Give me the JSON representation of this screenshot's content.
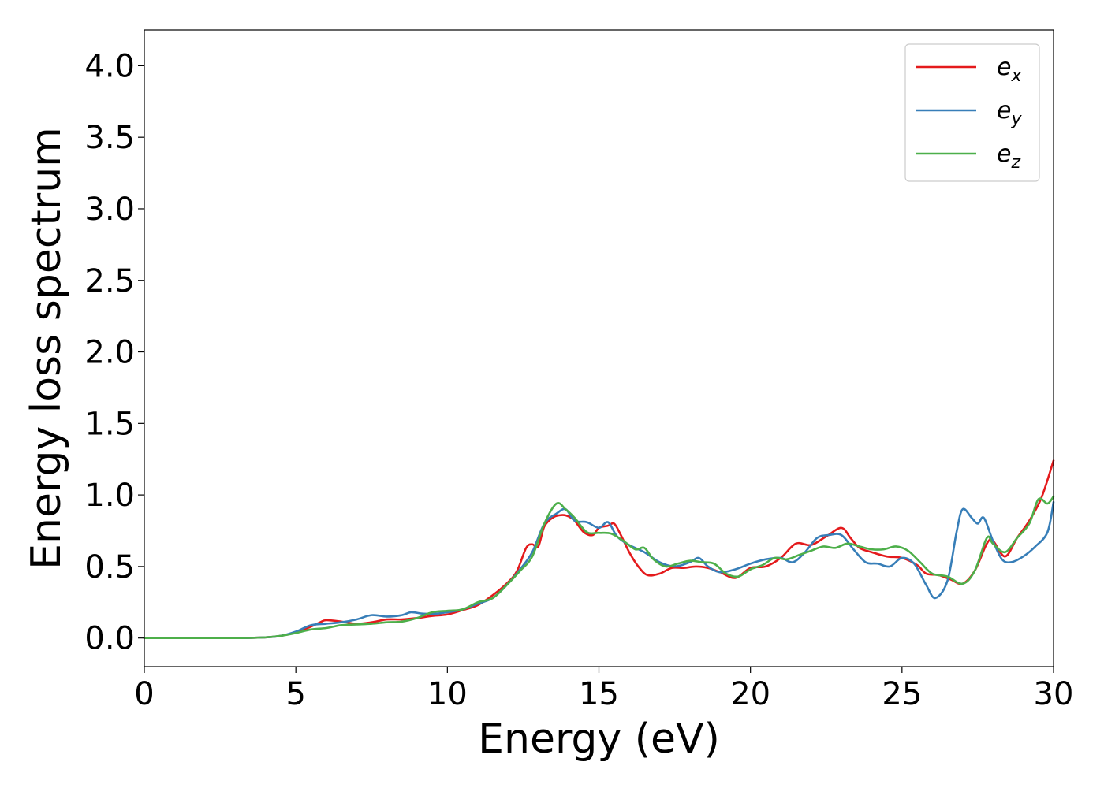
{
  "chart_data": {
    "type": "line",
    "title": "",
    "xlabel": "Energy (eV)",
    "ylabel": "Energy loss spectrum",
    "xlim": [
      0,
      30
    ],
    "ylim": [
      -0.2,
      4.25
    ],
    "xticks": [
      0,
      5,
      10,
      15,
      20,
      25,
      30
    ],
    "xtick_labels": [
      "0",
      "5",
      "10",
      "15",
      "20",
      "25",
      "30"
    ],
    "yticks": [
      0.0,
      0.5,
      1.0,
      1.5,
      2.0,
      2.5,
      3.0,
      3.5,
      4.0
    ],
    "ytick_labels": [
      "0.0",
      "0.5",
      "1.0",
      "1.5",
      "2.0",
      "2.5",
      "3.0",
      "3.5",
      "4.0"
    ],
    "grid": false,
    "legend_position": "top-right",
    "series": [
      {
        "name": "e_x",
        "label_base": "e",
        "label_sub": "x",
        "color": "#e41a1c",
        "points": [
          [
            0,
            0
          ],
          [
            3,
            0
          ],
          [
            4,
            0.005
          ],
          [
            4.5,
            0.015
          ],
          [
            5,
            0.04
          ],
          [
            5.5,
            0.08
          ],
          [
            5.8,
            0.11
          ],
          [
            6,
            0.125
          ],
          [
            6.5,
            0.115
          ],
          [
            7,
            0.1
          ],
          [
            7.5,
            0.11
          ],
          [
            8,
            0.13
          ],
          [
            8.5,
            0.13
          ],
          [
            9,
            0.14
          ],
          [
            9.5,
            0.155
          ],
          [
            10,
            0.165
          ],
          [
            10.5,
            0.195
          ],
          [
            11,
            0.23
          ],
          [
            11.5,
            0.3
          ],
          [
            12,
            0.39
          ],
          [
            12.3,
            0.47
          ],
          [
            12.6,
            0.63
          ],
          [
            12.8,
            0.655
          ],
          [
            13,
            0.64
          ],
          [
            13.2,
            0.78
          ],
          [
            13.5,
            0.845
          ],
          [
            13.8,
            0.86
          ],
          [
            14,
            0.85
          ],
          [
            14.2,
            0.82
          ],
          [
            14.5,
            0.74
          ],
          [
            14.8,
            0.72
          ],
          [
            15,
            0.77
          ],
          [
            15.3,
            0.785
          ],
          [
            15.5,
            0.8
          ],
          [
            15.7,
            0.73
          ],
          [
            16,
            0.6
          ],
          [
            16.3,
            0.5
          ],
          [
            16.6,
            0.44
          ],
          [
            17,
            0.45
          ],
          [
            17.4,
            0.49
          ],
          [
            17.8,
            0.49
          ],
          [
            18.2,
            0.5
          ],
          [
            18.6,
            0.49
          ],
          [
            19,
            0.46
          ],
          [
            19.5,
            0.42
          ],
          [
            20,
            0.49
          ],
          [
            20.5,
            0.5
          ],
          [
            21,
            0.56
          ],
          [
            21.5,
            0.66
          ],
          [
            22,
            0.65
          ],
          [
            22.5,
            0.71
          ],
          [
            23,
            0.77
          ],
          [
            23.3,
            0.7
          ],
          [
            23.6,
            0.63
          ],
          [
            24,
            0.6
          ],
          [
            24.5,
            0.57
          ],
          [
            25,
            0.56
          ],
          [
            25.5,
            0.51
          ],
          [
            25.8,
            0.45
          ],
          [
            26.2,
            0.44
          ],
          [
            26.6,
            0.41
          ],
          [
            27,
            0.38
          ],
          [
            27.4,
            0.47
          ],
          [
            27.8,
            0.66
          ],
          [
            28,
            0.68
          ],
          [
            28.4,
            0.57
          ],
          [
            28.8,
            0.7
          ],
          [
            29.2,
            0.82
          ],
          [
            29.6,
            0.98
          ],
          [
            30,
            1.24
          ]
        ]
      },
      {
        "name": "e_y",
        "label_base": "e",
        "label_sub": "y",
        "color": "#377eb8",
        "points": [
          [
            0,
            0
          ],
          [
            3,
            0
          ],
          [
            4,
            0.005
          ],
          [
            4.5,
            0.015
          ],
          [
            5,
            0.045
          ],
          [
            5.5,
            0.09
          ],
          [
            6,
            0.1
          ],
          [
            6.5,
            0.11
          ],
          [
            7,
            0.13
          ],
          [
            7.5,
            0.16
          ],
          [
            8,
            0.15
          ],
          [
            8.5,
            0.16
          ],
          [
            8.8,
            0.18
          ],
          [
            9.2,
            0.17
          ],
          [
            9.6,
            0.17
          ],
          [
            10,
            0.18
          ],
          [
            10.5,
            0.2
          ],
          [
            11,
            0.24
          ],
          [
            11.5,
            0.28
          ],
          [
            12,
            0.38
          ],
          [
            12.4,
            0.48
          ],
          [
            12.8,
            0.6
          ],
          [
            13.2,
            0.8
          ],
          [
            13.6,
            0.87
          ],
          [
            13.9,
            0.9
          ],
          [
            14.2,
            0.82
          ],
          [
            14.6,
            0.81
          ],
          [
            15,
            0.77
          ],
          [
            15.3,
            0.81
          ],
          [
            15.6,
            0.71
          ],
          [
            16,
            0.65
          ],
          [
            16.5,
            0.6
          ],
          [
            17,
            0.53
          ],
          [
            17.5,
            0.5
          ],
          [
            18,
            0.53
          ],
          [
            18.3,
            0.56
          ],
          [
            18.6,
            0.5
          ],
          [
            19,
            0.46
          ],
          [
            19.5,
            0.48
          ],
          [
            20,
            0.52
          ],
          [
            20.5,
            0.55
          ],
          [
            21,
            0.56
          ],
          [
            21.4,
            0.53
          ],
          [
            21.8,
            0.6
          ],
          [
            22.2,
            0.7
          ],
          [
            22.6,
            0.72
          ],
          [
            23,
            0.72
          ],
          [
            23.4,
            0.62
          ],
          [
            23.8,
            0.53
          ],
          [
            24.2,
            0.52
          ],
          [
            24.6,
            0.5
          ],
          [
            25,
            0.56
          ],
          [
            25.4,
            0.52
          ],
          [
            25.8,
            0.37
          ],
          [
            26.1,
            0.28
          ],
          [
            26.5,
            0.4
          ],
          [
            26.8,
            0.74
          ],
          [
            27,
            0.9
          ],
          [
            27.3,
            0.84
          ],
          [
            27.5,
            0.8
          ],
          [
            27.7,
            0.84
          ],
          [
            28,
            0.68
          ],
          [
            28.3,
            0.55
          ],
          [
            28.6,
            0.53
          ],
          [
            29,
            0.57
          ],
          [
            29.4,
            0.64
          ],
          [
            29.8,
            0.74
          ],
          [
            30,
            0.95
          ]
        ]
      },
      {
        "name": "e_z",
        "label_base": "e",
        "label_sub": "z",
        "color": "#4daf4a",
        "points": [
          [
            0,
            0
          ],
          [
            3,
            0
          ],
          [
            4,
            0.005
          ],
          [
            4.5,
            0.015
          ],
          [
            5,
            0.035
          ],
          [
            5.5,
            0.06
          ],
          [
            6,
            0.07
          ],
          [
            6.5,
            0.09
          ],
          [
            7,
            0.095
          ],
          [
            7.5,
            0.1
          ],
          [
            8,
            0.11
          ],
          [
            8.5,
            0.115
          ],
          [
            9,
            0.14
          ],
          [
            9.5,
            0.18
          ],
          [
            10,
            0.19
          ],
          [
            10.5,
            0.2
          ],
          [
            11,
            0.25
          ],
          [
            11.5,
            0.28
          ],
          [
            12,
            0.38
          ],
          [
            12.4,
            0.47
          ],
          [
            12.8,
            0.57
          ],
          [
            13.2,
            0.8
          ],
          [
            13.6,
            0.94
          ],
          [
            13.9,
            0.9
          ],
          [
            14.2,
            0.84
          ],
          [
            14.6,
            0.74
          ],
          [
            15,
            0.735
          ],
          [
            15.4,
            0.73
          ],
          [
            15.8,
            0.68
          ],
          [
            16.2,
            0.62
          ],
          [
            16.5,
            0.63
          ],
          [
            16.8,
            0.55
          ],
          [
            17.2,
            0.5
          ],
          [
            17.6,
            0.52
          ],
          [
            18,
            0.54
          ],
          [
            18.4,
            0.53
          ],
          [
            18.8,
            0.52
          ],
          [
            19.2,
            0.45
          ],
          [
            19.6,
            0.43
          ],
          [
            20,
            0.48
          ],
          [
            20.4,
            0.51
          ],
          [
            20.8,
            0.56
          ],
          [
            21.2,
            0.55
          ],
          [
            21.6,
            0.58
          ],
          [
            22,
            0.61
          ],
          [
            22.4,
            0.64
          ],
          [
            22.8,
            0.63
          ],
          [
            23.2,
            0.66
          ],
          [
            23.6,
            0.64
          ],
          [
            24,
            0.62
          ],
          [
            24.4,
            0.62
          ],
          [
            24.8,
            0.64
          ],
          [
            25.2,
            0.61
          ],
          [
            25.6,
            0.53
          ],
          [
            26,
            0.45
          ],
          [
            26.5,
            0.43
          ],
          [
            27,
            0.38
          ],
          [
            27.4,
            0.47
          ],
          [
            27.8,
            0.7
          ],
          [
            28,
            0.66
          ],
          [
            28.4,
            0.6
          ],
          [
            28.8,
            0.7
          ],
          [
            29.2,
            0.8
          ],
          [
            29.5,
            0.97
          ],
          [
            29.8,
            0.94
          ],
          [
            30,
            0.99
          ]
        ]
      }
    ]
  }
}
